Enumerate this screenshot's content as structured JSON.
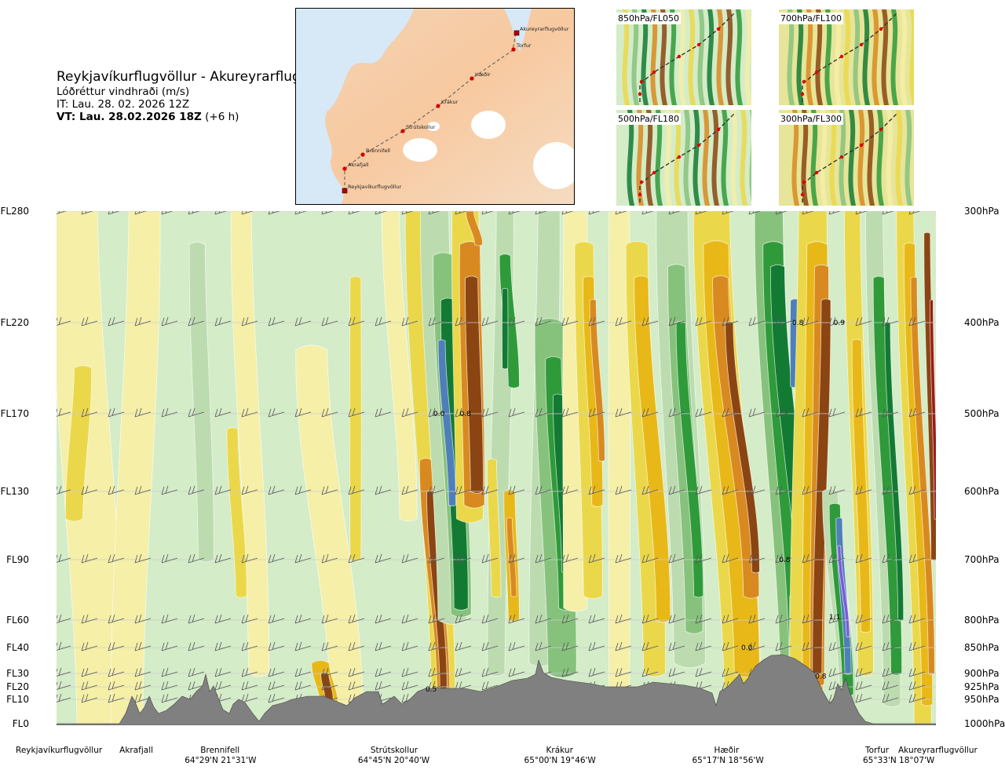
{
  "header": {
    "route": "Reykjavíkurflugvöllur - Akureyrarflugvöllur",
    "variable": "Lóðréttur vindhraði (m/s)",
    "issue_time": "IT: Lau. 28. 02. 2026 12Z",
    "valid_time": "VT: Lau. 28.02.2026 18Z",
    "lead": "(+6 h)"
  },
  "map": {
    "stations": [
      {
        "name": "Akureyrarflugvöllur"
      },
      {
        "name": "Torfur"
      },
      {
        "name": "Hæðir"
      },
      {
        "name": "Krákur"
      },
      {
        "name": "Strútskollur"
      },
      {
        "name": "Brennifell"
      },
      {
        "name": "Akrafjall"
      },
      {
        "name": "Reykjavíkurflugvöllur"
      }
    ]
  },
  "thumbnails": [
    {
      "label": "850hPa/FL050"
    },
    {
      "label": "700hPa/FL100"
    },
    {
      "label": "500hPa/FL180"
    },
    {
      "label": "300hPa/FL300"
    }
  ],
  "chart_data": {
    "type": "heatmap",
    "left_axis": [
      "FL280",
      "FL220",
      "FL170",
      "FL130",
      "FL90",
      "FL60",
      "FL40",
      "FL30",
      "FL20",
      "FL10",
      "FL0"
    ],
    "right_axis": [
      "300hPa",
      "400hPa",
      "500hPa",
      "600hPa",
      "700hPa",
      "800hPa",
      "850hPa",
      "900hPa",
      "925hPa",
      "950hPa",
      "1000hPa"
    ],
    "ylim_hpa": [
      1000,
      300
    ],
    "colors": {
      "up_strong": "#7a5ad8",
      "up_blue": "#4f7fb8",
      "up_dark": "#137a34",
      "up_mid": "#2f9a3a",
      "up_light": "#86c27c",
      "up_pale": "#bcdcb0",
      "neutral_green": "#d4ecc8",
      "neutral_yellow": "#f5efa8",
      "down_light": "#ebd84a",
      "down_mid": "#e8b818",
      "down_orange": "#d88a20",
      "down_dark": "#8b4512",
      "down_red": "#9e1a1a",
      "terrain": "#808080"
    },
    "value_labels": [
      {
        "text": "0.0",
        "x": 0.435,
        "hpa": 500
      },
      {
        "text": "0.8",
        "x": 0.465,
        "hpa": 500
      },
      {
        "text": "0.8",
        "x": 0.843,
        "hpa": 400
      },
      {
        "text": "0.9",
        "x": 0.89,
        "hpa": 400
      },
      {
        "text": "0.8",
        "x": 0.828,
        "hpa": 700
      },
      {
        "text": "1.1",
        "x": 0.885,
        "hpa": 795
      },
      {
        "text": "0.0",
        "x": 0.785,
        "hpa": 850
      },
      {
        "text": "0.8",
        "x": 0.869,
        "hpa": 905
      },
      {
        "text": "0.5",
        "x": 0.426,
        "hpa": 930
      }
    ],
    "waypoints": [
      {
        "name": "Reykjavíkurflugvöllur",
        "coord": "",
        "x": 0.0
      },
      {
        "name": "Akrafjall",
        "coord": "",
        "x": 0.093
      },
      {
        "name": "Brennifell",
        "coord": "64°29'N 21°31'W",
        "x": 0.185
      },
      {
        "name": "Strútskollur",
        "coord": "64°45'N 20°40'W",
        "x": 0.382
      },
      {
        "name": "Krákur",
        "coord": "65°00'N 19°46'W",
        "x": 0.571
      },
      {
        "name": "Hæðir",
        "coord": "65°17'N 18°56'W",
        "x": 0.762
      },
      {
        "name": "Torfur",
        "coord": "65°33'N 18°07'W",
        "x": 0.955
      },
      {
        "name": "Akureyrarflugvöllur",
        "coord": "",
        "x": 1.0
      }
    ]
  }
}
